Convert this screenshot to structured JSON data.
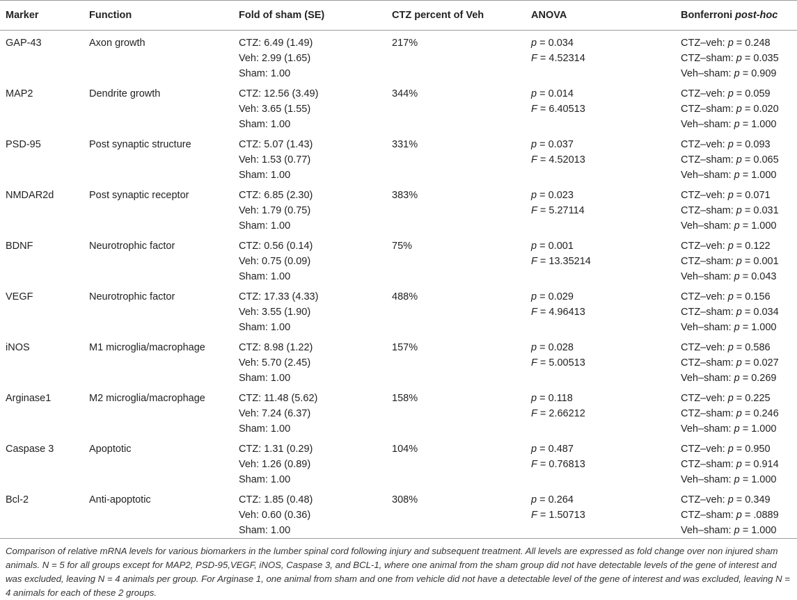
{
  "table": {
    "header": [
      "Marker",
      "Function",
      "Fold of sham (SE)",
      "CTZ percent of Veh",
      "ANOVA",
      {
        "text": "Bonferroni",
        "italic": "post-hoc"
      }
    ],
    "rows": [
      {
        "marker": "GAP-43",
        "function": "Axon growth",
        "fold": [
          "CTZ: 6.49 (1.49)",
          "Veh: 2.99 (1.65)",
          "Sham: 1.00"
        ],
        "percent": "217%",
        "anova": [
          "p = 0.034",
          "F = 4.52314"
        ],
        "posthoc": [
          [
            "CTZ–veh:",
            "p = 0.248"
          ],
          [
            "CTZ–sham:",
            "p = 0.035"
          ],
          [
            "Veh–sham:",
            "p = 0.909"
          ]
        ]
      },
      {
        "marker": "MAP2",
        "function": "Dendrite growth",
        "fold": [
          "CTZ: 12.56 (3.49)",
          "Veh: 3.65 (1.55)",
          "Sham: 1.00"
        ],
        "percent": "344%",
        "anova": [
          "p = 0.014",
          "F = 6.40513"
        ],
        "posthoc": [
          [
            "CTZ–veh:",
            "p = 0.059"
          ],
          [
            "CTZ–sham:",
            "p = 0.020"
          ],
          [
            "Veh–sham:",
            "p = 1.000"
          ]
        ]
      },
      {
        "marker": "PSD-95",
        "function": "Post synaptic structure",
        "fold": [
          "CTZ: 5.07 (1.43)",
          "Veh: 1.53 (0.77)",
          "Sham: 1.00"
        ],
        "percent": "331%",
        "anova": [
          "p = 0.037",
          "F = 4.52013"
        ],
        "posthoc": [
          [
            "CTZ–veh:",
            "p = 0.093"
          ],
          [
            "CTZ–sham:",
            "p = 0.065"
          ],
          [
            "Veh–sham:",
            "p = 1.000"
          ]
        ]
      },
      {
        "marker": "NMDAR2d",
        "function": "Post synaptic receptor",
        "fold": [
          "CTZ: 6.85 (2.30)",
          "Veh: 1.79 (0.75)",
          "Sham: 1.00"
        ],
        "percent": "383%",
        "anova": [
          "p = 0.023",
          "F = 5.27114"
        ],
        "posthoc": [
          [
            "CTZ–veh:",
            "p = 0.071"
          ],
          [
            "CTZ–sham:",
            "p = 0.031"
          ],
          [
            "Veh–sham:",
            "p = 1.000"
          ]
        ]
      },
      {
        "marker": "BDNF",
        "function": "Neurotrophic factor",
        "fold": [
          "CTZ: 0.56 (0.14)",
          "Veh: 0.75 (0.09)",
          "Sham: 1.00"
        ],
        "percent": "75%",
        "anova": [
          "p = 0.001",
          "F = 13.35214"
        ],
        "posthoc": [
          [
            "CTZ–veh:",
            "p = 0.122"
          ],
          [
            "CTZ–sham:",
            "p = 0.001"
          ],
          [
            "Veh–sham:",
            "p = 0.043"
          ]
        ]
      },
      {
        "marker": "VEGF",
        "function": "Neurotrophic factor",
        "fold": [
          "CTZ: 17.33 (4.33)",
          "Veh: 3.55 (1.90)",
          "Sham: 1.00"
        ],
        "percent": "488%",
        "anova": [
          "p = 0.029",
          "F = 4.96413"
        ],
        "posthoc": [
          [
            "CTZ–veh:",
            "p = 0.156"
          ],
          [
            "CTZ–sham:",
            "p = 0.034"
          ],
          [
            "Veh–sham:",
            "p = 1.000"
          ]
        ]
      },
      {
        "marker": "iNOS",
        "function": "M1 microglia/macrophage",
        "fold": [
          "CTZ: 8.98 (1.22)",
          "Veh: 5.70 (2.45)",
          "Sham: 1.00"
        ],
        "percent": "157%",
        "anova": [
          "p = 0.028",
          "F = 5.00513"
        ],
        "posthoc": [
          [
            "CTZ–veh:",
            "p = 0.586"
          ],
          [
            "CTZ–sham:",
            "p = 0.027"
          ],
          [
            "Veh–sham:",
            "p = 0.269"
          ]
        ]
      },
      {
        "marker": "Arginase1",
        "function": "M2 microglia/macrophage",
        "fold": [
          "CTZ: 11.48 (5.62)",
          "Veh: 7.24 (6.37)",
          "Sham: 1.00"
        ],
        "percent": "158%",
        "anova": [
          "p = 0.118",
          "F = 2.66212"
        ],
        "posthoc": [
          [
            "CTZ–veh:",
            "p = 0.225"
          ],
          [
            "CTZ–sham:",
            "p = 0.246"
          ],
          [
            "Veh–sham:",
            "p = 1.000"
          ]
        ]
      },
      {
        "marker": "Caspase 3",
        "function": "Apoptotic",
        "fold": [
          "CTZ: 1.31 (0.29)",
          "Veh: 1.26 (0.89)",
          "Sham: 1.00"
        ],
        "percent": "104%",
        "anova": [
          "p = 0.487",
          "F = 0.76813"
        ],
        "posthoc": [
          [
            "CTZ–veh:",
            "p = 0.950"
          ],
          [
            "CTZ–sham:",
            "p = 0.914"
          ],
          [
            "Veh–sham:",
            "p = 1.000"
          ]
        ]
      },
      {
        "marker": "Bcl-2",
        "function": "Anti-apoptotic",
        "fold": [
          "CTZ: 1.85 (0.48)",
          "Veh: 0.60 (0.36)",
          "Sham: 1.00"
        ],
        "percent": "308%",
        "anova": [
          "p = 0.264",
          "F = 1.50713"
        ],
        "posthoc": [
          [
            "CTZ–veh:",
            "p = 0.349"
          ],
          [
            "CTZ–sham:",
            "p = .0889"
          ],
          [
            "Veh–sham:",
            "p = 1.000"
          ]
        ]
      }
    ]
  },
  "caption": "Comparison of relative mRNA levels for various biomarkers in the lumber spinal cord following injury and subsequent treatment. All levels are expressed as fold change over non injured sham animals. N = 5 for all groups except for MAP2, PSD-95,VEGF, iNOS, Caspase 3, and BCL-1, where one animal from the sham group did not have detectable levels of the gene of interest and was excluded, leaving N = 4 animals per group. For Arginase 1, one animal from sham and one from vehicle did not have a detectable level of the gene of interest and was excluded, leaving N = 4 animals for each of these 2 groups."
}
